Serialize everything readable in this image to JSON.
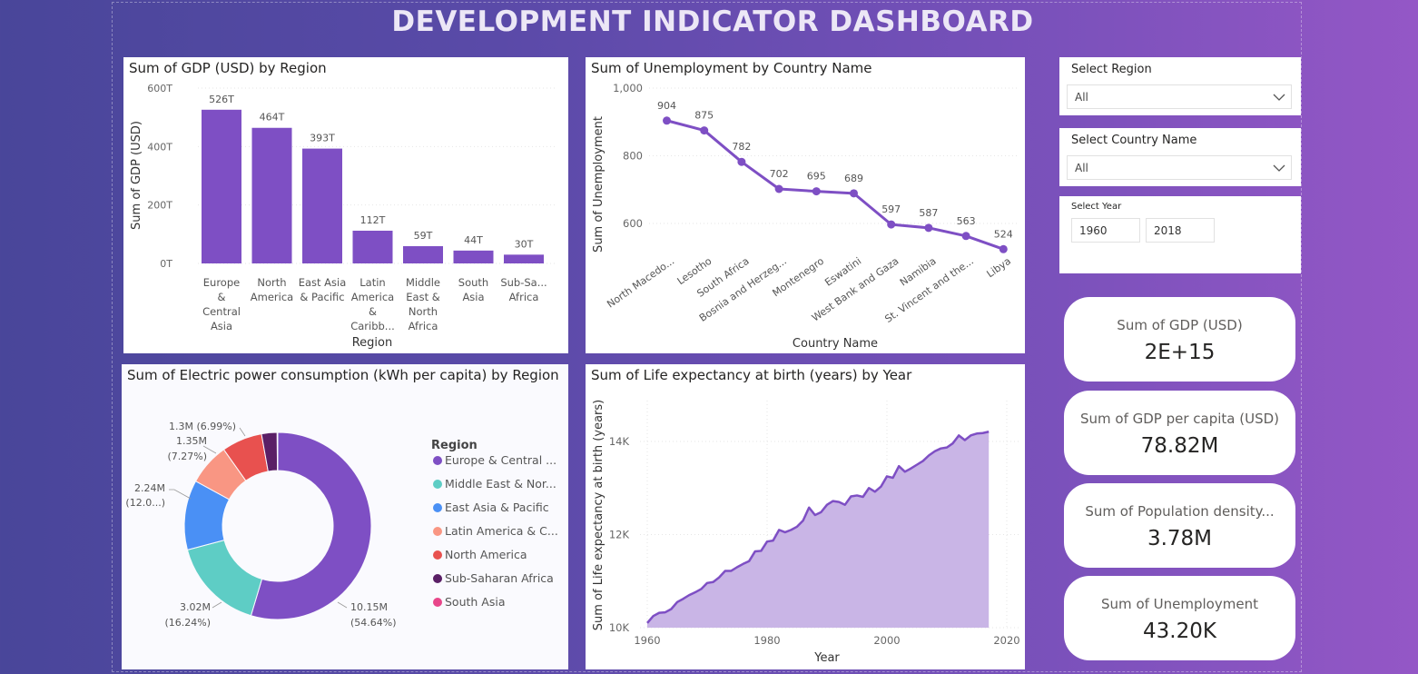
{
  "dashboard": {
    "title": "DEVELOPMENT INDICATOR DASHBOARD"
  },
  "colors": {
    "accent": "#7e4fc4",
    "area_fill": "#c9b5e6"
  },
  "gdp_chart": {
    "title": "Sum of GDP (USD) by Region",
    "xlabel": "Region",
    "ylabel": "Sum of GDP (USD)",
    "y_ticks": [
      "600T",
      "400T",
      "200T",
      "0T"
    ],
    "category_lines": [
      [
        "Europe",
        "&",
        "Central",
        "Asia"
      ],
      [
        "North",
        "America"
      ],
      [
        "East Asia",
        "& Pacific"
      ],
      [
        "Latin",
        "America",
        "&",
        "Caribb..."
      ],
      [
        "Middle",
        "East &",
        "North",
        "Africa"
      ],
      [
        "South",
        "Asia"
      ],
      [
        "Sub-Sa...",
        "Africa"
      ]
    ],
    "value_labels": [
      "526T",
      "464T",
      "393T",
      "112T",
      "59T",
      "44T",
      "30T"
    ]
  },
  "unemp_chart": {
    "title": "Sum of Unemployment by Country Name",
    "xlabel": "Country Name",
    "ylabel": "Sum of Unemployment",
    "y_ticks": [
      "1,000",
      "800",
      "600"
    ]
  },
  "elec_chart": {
    "title": "Sum of Electric power consumption (kWh per capita) by Region",
    "legend_title": "Region",
    "legend": [
      "Europe & Central ...",
      "Middle East & Nor...",
      "East Asia & Pacific",
      "Latin America & C...",
      "North America",
      "Sub-Saharan Africa",
      "South Asia"
    ],
    "label_europe": [
      "10.15M",
      "(54.64%)"
    ],
    "label_mena": [
      "3.02M",
      "(16.24%)"
    ],
    "label_eap": [
      "2.24M",
      "(12.0...)"
    ],
    "label_lac": [
      "1.35M",
      "(7.27%)"
    ],
    "label_na": "1.3M (6.99%)"
  },
  "life_chart": {
    "title": "Sum of Life expectancy at birth (years) by Year",
    "xlabel": "Year",
    "ylabel": "Sum of Life expectancy at birth (years)",
    "y_ticks": [
      "14K",
      "12K",
      "10K"
    ],
    "x_ticks": [
      "1960",
      "1980",
      "2000",
      "2020"
    ]
  },
  "chart_data": [
    {
      "type": "bar",
      "categories": [
        "Europe & Central Asia",
        "North America",
        "East Asia & Pacific",
        "Latin America & Caribb...",
        "Middle East & North Africa",
        "South Asia",
        "Sub-Sa... Africa"
      ],
      "values": [
        526,
        464,
        393,
        112,
        59,
        44,
        30
      ],
      "unit": "T",
      "ylim": [
        0,
        600
      ]
    },
    {
      "type": "line",
      "categories": [
        "North Macedo...",
        "Lesotho",
        "South Africa",
        "Bosnia and Herzeg...",
        "Montenegro",
        "Eswatini",
        "West Bank and Gaza",
        "Namibia",
        "St. Vincent and the...",
        "Libya"
      ],
      "values": [
        904,
        875,
        782,
        702,
        695,
        689,
        597,
        587,
        563,
        524
      ],
      "ylim": [
        500,
        1000
      ]
    },
    {
      "type": "pie",
      "categories": [
        "Europe & Central Asia",
        "Middle East & North Africa",
        "East Asia & Pacific",
        "Latin America & Caribbean",
        "North America",
        "Sub-Saharan Africa",
        "South Asia"
      ],
      "values": [
        10.15,
        3.02,
        2.24,
        1.35,
        1.3,
        0.5,
        0.02
      ],
      "unit": "M",
      "colors": [
        "#7e4fc4",
        "#5ecdc5",
        "#4a90f5",
        "#f99683",
        "#e8514f",
        "#5a1f66",
        "#e8468a"
      ]
    },
    {
      "type": "area",
      "x": [
        1960,
        1961,
        1962,
        1963,
        1964,
        1965,
        1966,
        1967,
        1968,
        1969,
        1970,
        1971,
        1972,
        1973,
        1974,
        1975,
        1976,
        1977,
        1978,
        1979,
        1980,
        1981,
        1982,
        1983,
        1984,
        1985,
        1986,
        1987,
        1988,
        1989,
        1990,
        1991,
        1992,
        1993,
        1994,
        1995,
        1996,
        1997,
        1998,
        1999,
        2000,
        2001,
        2002,
        2003,
        2004,
        2005,
        2006,
        2007,
        2008,
        2009,
        2010,
        2011,
        2012,
        2013,
        2014,
        2015,
        2016,
        2017
      ],
      "values": [
        10100,
        10250,
        10320,
        10330,
        10400,
        10550,
        10620,
        10700,
        10760,
        10830,
        10960,
        10980,
        11080,
        11220,
        11220,
        11300,
        11370,
        11430,
        11640,
        11650,
        11850,
        11870,
        12100,
        12050,
        12100,
        12170,
        12300,
        12580,
        12420,
        12480,
        12640,
        12720,
        12700,
        12640,
        12820,
        12840,
        12810,
        13000,
        12920,
        13030,
        13250,
        13220,
        13470,
        13350,
        13420,
        13500,
        13580,
        13700,
        13790,
        13850,
        13870,
        13960,
        14130,
        14030,
        14130,
        14170,
        14180,
        14210
      ],
      "xlim": [
        1960,
        2020
      ],
      "ylim": [
        10000,
        14600
      ]
    }
  ],
  "slicers": {
    "region": {
      "label": "Select Region",
      "value": "All"
    },
    "country": {
      "label": "Select Country Name",
      "value": "All"
    },
    "year": {
      "label": "Select Year",
      "from": "1960",
      "to": "2018"
    }
  },
  "cards": [
    {
      "label": "Sum of GDP (USD)",
      "value": "2E+15"
    },
    {
      "label": "Sum of GDP per capita (USD)",
      "value": "78.82M"
    },
    {
      "label": "Sum of Population density...",
      "value": "3.78M"
    },
    {
      "label": "Sum of Unemployment",
      "value": "43.20K"
    }
  ]
}
